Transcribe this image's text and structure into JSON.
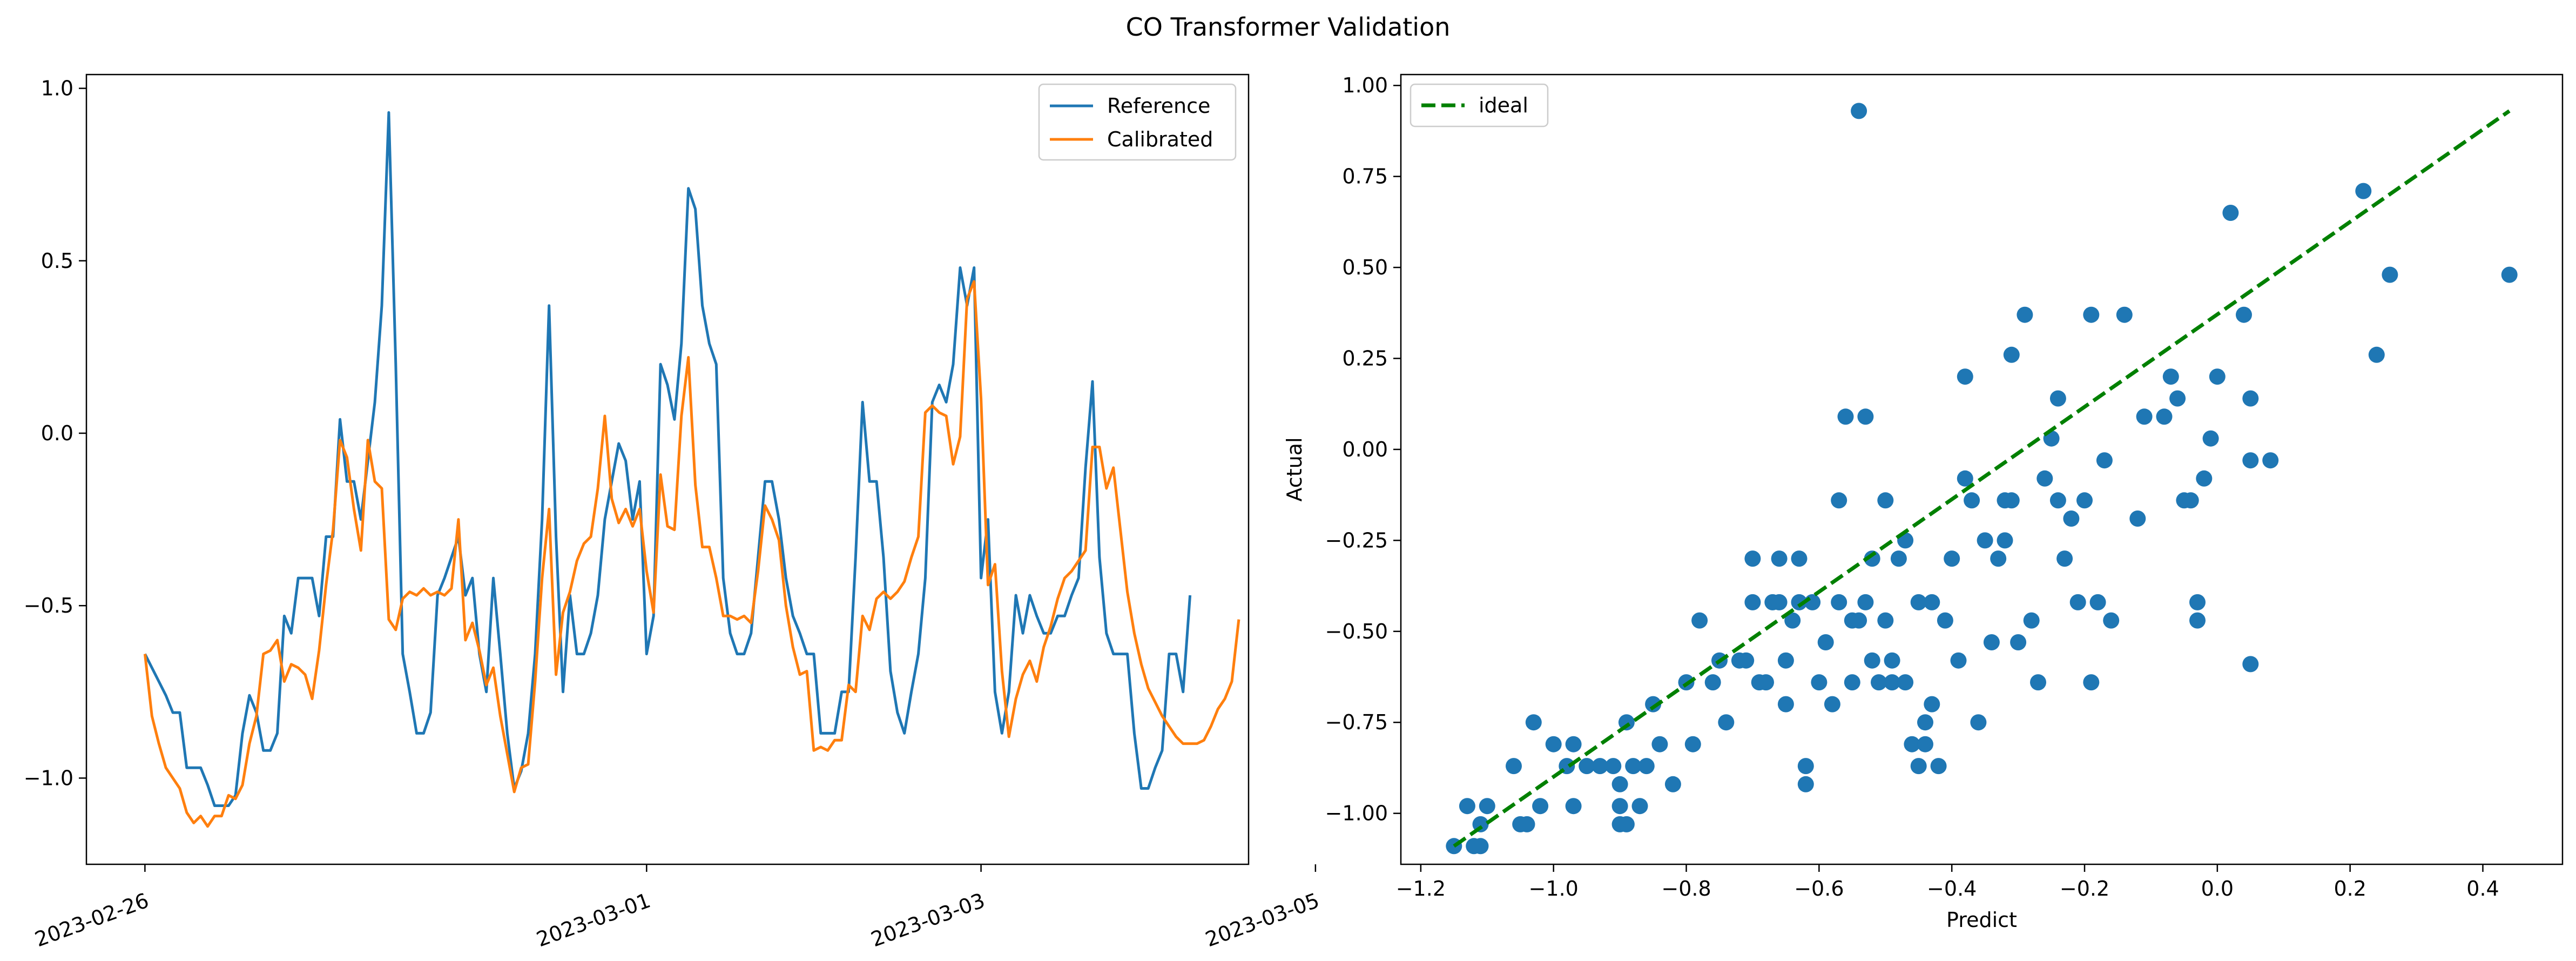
{
  "figure_title": "CO Transformer Validation",
  "colors": {
    "reference": "#1f77b4",
    "calibrated": "#ff7f0e",
    "ideal": "#008000",
    "scatter": "#1f77b4"
  },
  "chart_data": [
    {
      "type": "line",
      "title": "",
      "xlabel": "",
      "ylabel": "",
      "x_tick_labels": [
        "2023-02-26",
        "2023-03-01",
        "2023-03-03",
        "2023-03-05"
      ],
      "y_ticks": [
        "1.0",
        "0.5",
        "0.0",
        "−0.5",
        "−1.0"
      ],
      "ylim": [
        -1.25,
        1.04
      ],
      "x_start": "2023-02-26T00:00",
      "x_step_hours": 1,
      "legend": "top-right",
      "series": [
        {
          "name": "Reference",
          "values": [
            -0.64,
            -0.68,
            -0.72,
            -0.76,
            -0.81,
            -0.81,
            -0.97,
            -0.97,
            -0.97,
            -1.02,
            -1.08,
            -1.08,
            -1.08,
            -1.05,
            -0.87,
            -0.76,
            -0.81,
            -0.92,
            -0.92,
            -0.87,
            -0.53,
            -0.58,
            -0.42,
            -0.42,
            -0.42,
            -0.53,
            -0.3,
            -0.3,
            0.04,
            -0.14,
            -0.14,
            -0.25,
            -0.08,
            0.09,
            0.37,
            0.93,
            0.2,
            -0.64,
            -0.75,
            -0.87,
            -0.87,
            -0.81,
            -0.47,
            -0.42,
            -0.36,
            -0.3,
            -0.47,
            -0.42,
            -0.64,
            -0.75,
            -0.42,
            -0.64,
            -0.87,
            -1.03,
            -0.98,
            -0.87,
            -0.64,
            -0.25,
            0.37,
            -0.3,
            -0.75,
            -0.47,
            -0.64,
            -0.64,
            -0.58,
            -0.47,
            -0.25,
            -0.14,
            -0.03,
            -0.08,
            -0.25,
            -0.14,
            -0.64,
            -0.53,
            0.2,
            0.14,
            0.04,
            0.26,
            0.71,
            0.65,
            0.37,
            0.26,
            0.2,
            -0.42,
            -0.58,
            -0.64,
            -0.64,
            -0.58,
            -0.36,
            -0.14,
            -0.14,
            -0.25,
            -0.42,
            -0.53,
            -0.58,
            -0.64,
            -0.64,
            -0.87,
            -0.87,
            -0.87,
            -0.75,
            -0.75,
            -0.36,
            0.09,
            -0.14,
            -0.14,
            -0.36,
            -0.69,
            -0.81,
            -0.87,
            -0.75,
            -0.64,
            -0.42,
            0.09,
            0.14,
            0.09,
            0.2,
            0.48,
            0.37,
            0.48,
            -0.42,
            -0.25,
            -0.75,
            -0.87,
            -0.75,
            -0.47,
            -0.58,
            -0.47,
            -0.53,
            -0.58,
            -0.58,
            -0.53,
            -0.53,
            -0.47,
            -0.42,
            -0.1,
            0.15,
            -0.36,
            -0.58,
            -0.64,
            -0.64,
            -0.64,
            -0.87,
            -1.03,
            -1.03,
            -0.97,
            -0.92,
            -0.64,
            -0.64,
            -0.75,
            -0.47
          ]
        },
        {
          "name": "Calibrated",
          "values": [
            -0.64,
            -0.82,
            -0.9,
            -0.97,
            -1.0,
            -1.03,
            -1.1,
            -1.13,
            -1.11,
            -1.14,
            -1.11,
            -1.11,
            -1.05,
            -1.06,
            -1.02,
            -0.9,
            -0.82,
            -0.64,
            -0.63,
            -0.6,
            -0.72,
            -0.67,
            -0.68,
            -0.7,
            -0.77,
            -0.63,
            -0.44,
            -0.28,
            -0.02,
            -0.07,
            -0.22,
            -0.34,
            -0.02,
            -0.14,
            -0.16,
            -0.54,
            -0.57,
            -0.48,
            -0.46,
            -0.47,
            -0.45,
            -0.47,
            -0.46,
            -0.47,
            -0.45,
            -0.25,
            -0.6,
            -0.55,
            -0.63,
            -0.73,
            -0.68,
            -0.82,
            -0.93,
            -1.04,
            -0.97,
            -0.96,
            -0.72,
            -0.42,
            -0.22,
            -0.7,
            -0.52,
            -0.46,
            -0.37,
            -0.32,
            -0.3,
            -0.16,
            0.05,
            -0.19,
            -0.26,
            -0.22,
            -0.27,
            -0.22,
            -0.4,
            -0.52,
            -0.12,
            -0.27,
            -0.28,
            0.05,
            0.22,
            -0.15,
            -0.33,
            -0.33,
            -0.42,
            -0.53,
            -0.53,
            -0.54,
            -0.53,
            -0.55,
            -0.4,
            -0.21,
            -0.25,
            -0.31,
            -0.5,
            -0.62,
            -0.7,
            -0.69,
            -0.92,
            -0.91,
            -0.92,
            -0.89,
            -0.89,
            -0.73,
            -0.75,
            -0.53,
            -0.57,
            -0.48,
            -0.46,
            -0.48,
            -0.46,
            -0.43,
            -0.36,
            -0.3,
            0.06,
            0.08,
            0.06,
            0.05,
            -0.09,
            -0.01,
            0.39,
            0.44,
            0.1,
            -0.44,
            -0.38,
            -0.69,
            -0.88,
            -0.77,
            -0.7,
            -0.66,
            -0.72,
            -0.62,
            -0.56,
            -0.48,
            -0.42,
            -0.4,
            -0.37,
            -0.34,
            -0.04,
            -0.04,
            -0.16,
            -0.1,
            -0.28,
            -0.46,
            -0.58,
            -0.67,
            -0.74,
            -0.78,
            -0.82,
            -0.85,
            -0.88,
            -0.9,
            -0.9,
            -0.9,
            -0.89,
            -0.85,
            -0.8,
            -0.77,
            -0.72,
            -0.54
          ]
        }
      ]
    },
    {
      "type": "scatter",
      "title": "",
      "xlabel": "Predict",
      "ylabel": "Actual",
      "x_ticks": [
        "−1.2",
        "−1.0",
        "−0.8",
        "−0.6",
        "−0.4",
        "−0.2",
        "0.0",
        "0.2",
        "0.4"
      ],
      "y_ticks": [
        "1.00",
        "0.75",
        "0.50",
        "0.25",
        "0.00",
        "−0.25",
        "−0.50",
        "−0.75",
        "−1.00"
      ],
      "xlim": [
        -1.23,
        0.52
      ],
      "ylim": [
        -1.14,
        1.03
      ],
      "legend": "top-left",
      "ideal_line": {
        "name": "ideal",
        "from": [
          -1.15,
          -1.09
        ],
        "to": [
          0.44,
          0.93
        ]
      },
      "points": [
        [
          -1.15,
          -1.09
        ],
        [
          -1.13,
          -0.98
        ],
        [
          -1.11,
          -1.03
        ],
        [
          -1.11,
          -1.09
        ],
        [
          -1.1,
          -0.98
        ],
        [
          -1.12,
          -1.09
        ],
        [
          -1.06,
          -0.87
        ],
        [
          -1.05,
          -1.03
        ],
        [
          -1.04,
          -1.03
        ],
        [
          -1.03,
          -0.75
        ],
        [
          -1.02,
          -0.98
        ],
        [
          -1.0,
          -0.81
        ],
        [
          -0.98,
          -0.87
        ],
        [
          -0.97,
          -0.81
        ],
        [
          -0.97,
          -0.98
        ],
        [
          -0.95,
          -0.87
        ],
        [
          -0.93,
          -0.87
        ],
        [
          -0.91,
          -0.87
        ],
        [
          -0.9,
          -1.03
        ],
        [
          -0.9,
          -0.98
        ],
        [
          -0.89,
          -1.03
        ],
        [
          -0.9,
          -0.92
        ],
        [
          -0.89,
          -0.75
        ],
        [
          -0.88,
          -0.87
        ],
        [
          -0.87,
          -0.98
        ],
        [
          -0.86,
          -0.87
        ],
        [
          -0.85,
          -0.7
        ],
        [
          -0.84,
          -0.81
        ],
        [
          -0.82,
          -0.92
        ],
        [
          -0.8,
          -0.64
        ],
        [
          -0.79,
          -0.81
        ],
        [
          -0.78,
          -0.47
        ],
        [
          -0.76,
          -0.64
        ],
        [
          -0.75,
          -0.58
        ],
        [
          -0.74,
          -0.75
        ],
        [
          -0.72,
          -0.58
        ],
        [
          -0.71,
          -0.58
        ],
        [
          -0.7,
          -0.3
        ],
        [
          -0.7,
          -0.42
        ],
        [
          -0.69,
          -0.64
        ],
        [
          -0.68,
          -0.64
        ],
        [
          -0.67,
          -0.42
        ],
        [
          -0.66,
          -0.3
        ],
        [
          -0.66,
          -0.42
        ],
        [
          -0.65,
          -0.58
        ],
        [
          -0.65,
          -0.7
        ],
        [
          -0.64,
          -0.47
        ],
        [
          -0.63,
          -0.3
        ],
        [
          -0.63,
          -0.42
        ],
        [
          -0.62,
          -0.92
        ],
        [
          -0.62,
          -0.87
        ],
        [
          -0.61,
          -0.42
        ],
        [
          -0.6,
          -0.64
        ],
        [
          -0.59,
          -0.53
        ],
        [
          -0.58,
          -0.7
        ],
        [
          -0.57,
          -0.14
        ],
        [
          -0.57,
          -0.42
        ],
        [
          -0.56,
          0.09
        ],
        [
          -0.55,
          -0.64
        ],
        [
          -0.55,
          -0.47
        ],
        [
          -0.54,
          -0.47
        ],
        [
          -0.54,
          0.93
        ],
        [
          -0.53,
          -0.42
        ],
        [
          -0.53,
          0.09
        ],
        [
          -0.52,
          -0.3
        ],
        [
          -0.52,
          -0.58
        ],
        [
          -0.51,
          -0.64
        ],
        [
          -0.5,
          -0.47
        ],
        [
          -0.5,
          -0.14
        ],
        [
          -0.49,
          -0.58
        ],
        [
          -0.49,
          -0.64
        ],
        [
          -0.48,
          -0.3
        ],
        [
          -0.47,
          -0.25
        ],
        [
          -0.47,
          -0.64
        ],
        [
          -0.46,
          -0.81
        ],
        [
          -0.45,
          -0.87
        ],
        [
          -0.45,
          -0.42
        ],
        [
          -0.44,
          -0.75
        ],
        [
          -0.44,
          -0.81
        ],
        [
          -0.43,
          -0.42
        ],
        [
          -0.43,
          -0.7
        ],
        [
          -0.42,
          -0.87
        ],
        [
          -0.41,
          -0.47
        ],
        [
          -0.4,
          -0.3
        ],
        [
          -0.39,
          -0.58
        ],
        [
          -0.38,
          -0.08
        ],
        [
          -0.38,
          0.2
        ],
        [
          -0.37,
          -0.14
        ],
        [
          -0.36,
          -0.75
        ],
        [
          -0.35,
          -0.25
        ],
        [
          -0.34,
          -0.53
        ],
        [
          -0.33,
          -0.3
        ],
        [
          -0.32,
          -0.14
        ],
        [
          -0.32,
          -0.25
        ],
        [
          -0.31,
          0.26
        ],
        [
          -0.31,
          -0.14
        ],
        [
          -0.3,
          -0.53
        ],
        [
          -0.29,
          0.37
        ],
        [
          -0.28,
          -0.47
        ],
        [
          -0.27,
          -0.64
        ],
        [
          -0.26,
          -0.08
        ],
        [
          -0.25,
          0.03
        ],
        [
          -0.24,
          0.14
        ],
        [
          -0.24,
          -0.14
        ],
        [
          -0.23,
          -0.3
        ],
        [
          -0.22,
          -0.19
        ],
        [
          -0.21,
          -0.42
        ],
        [
          -0.2,
          -0.14
        ],
        [
          -0.19,
          0.37
        ],
        [
          -0.19,
          -0.64
        ],
        [
          -0.18,
          -0.42
        ],
        [
          -0.17,
          -0.03
        ],
        [
          -0.16,
          -0.47
        ],
        [
          -0.14,
          0.37
        ],
        [
          -0.12,
          -0.19
        ],
        [
          -0.11,
          0.09
        ],
        [
          -0.08,
          0.09
        ],
        [
          -0.07,
          0.2
        ],
        [
          -0.06,
          0.14
        ],
        [
          -0.05,
          -0.14
        ],
        [
          -0.04,
          -0.14
        ],
        [
          -0.03,
          -0.42
        ],
        [
          -0.03,
          -0.47
        ],
        [
          -0.02,
          -0.08
        ],
        [
          -0.01,
          0.03
        ],
        [
          0.0,
          0.2
        ],
        [
          0.02,
          0.65
        ],
        [
          0.04,
          0.37
        ],
        [
          0.05,
          0.14
        ],
        [
          0.05,
          -0.03
        ],
        [
          0.05,
          -0.59
        ],
        [
          0.08,
          -0.03
        ],
        [
          0.22,
          0.71
        ],
        [
          0.24,
          0.26
        ],
        [
          0.26,
          0.48
        ],
        [
          0.44,
          0.48
        ]
      ]
    }
  ]
}
